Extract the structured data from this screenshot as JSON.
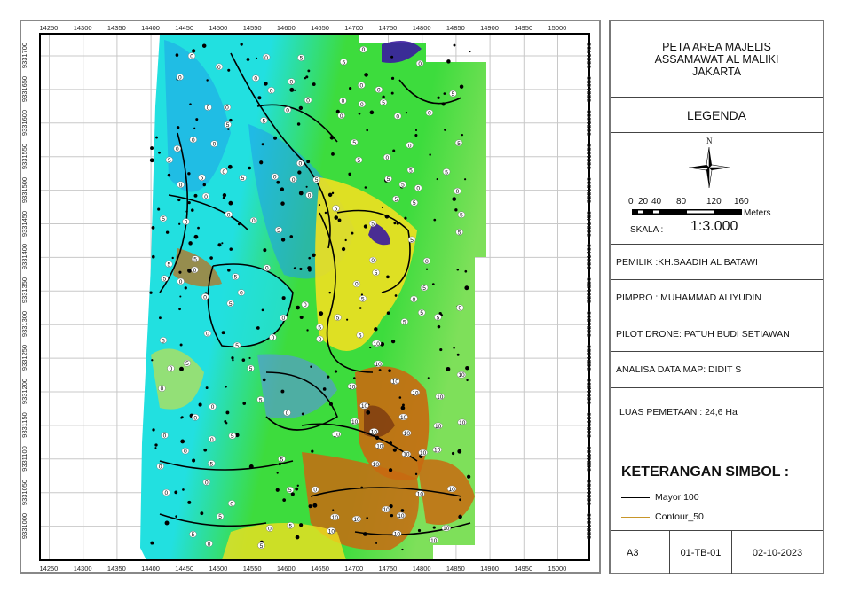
{
  "map": {
    "x_ticks": [
      "14250",
      "14300",
      "14350",
      "14400",
      "14450",
      "14500",
      "14550",
      "14600",
      "14650",
      "14700",
      "14750",
      "14800",
      "14850",
      "14900",
      "14950",
      "15000"
    ],
    "y_ticks": [
      "9331700",
      "9331650",
      "9331600",
      "9331550",
      "9331500",
      "9331450",
      "9331400",
      "9331350",
      "9331300",
      "9331250",
      "9331200",
      "9331150",
      "9331100",
      "9331050",
      "9331000"
    ],
    "contour_label_values": [
      "0",
      "5",
      "10"
    ],
    "colors": {
      "low": "#1fa0e8",
      "mid_low": "#22e0e0",
      "mid": "#3ddc3d",
      "mid_high": "#f0e020",
      "high": "#c86a10",
      "peak": "#7a3a10",
      "depression": "#3a1aa0",
      "contour": "#000000"
    }
  },
  "panel": {
    "title_lines": [
      "PETA  AREA MAJELIS",
      "ASSAMAWAT AL MALIKI",
      "JAKARTA"
    ],
    "legend_heading": "LEGENDA",
    "north_label": "N",
    "scale_bar_labels": [
      "0",
      "20",
      "40",
      "80",
      "120",
      "160"
    ],
    "scale_unit": "Meters",
    "scale_label": "SKALA :",
    "scale_value": "1:3.000",
    "owner": "PEMILIK :KH.SAADIH AL BATAWI",
    "project_lead": "PIMPRO : MUHAMMAD ALIYUDIN",
    "drone_pilot": "PILOT DRONE: PATUH BUDI SETIAWAN",
    "data_analysis": "ANALISA DATA MAP: DIDIT S",
    "area": "LUAS PEMETAAN : 24,6 Ha",
    "symbols_heading": "KETERANGAN SIMBOL :",
    "symbols": [
      {
        "label": "Mayor 100",
        "color": "#000000"
      },
      {
        "label": "Contour_50",
        "color": "#c8962a"
      }
    ],
    "footer": {
      "paper": "A3",
      "sheet": "01-TB-01",
      "date": "02-10-2023"
    }
  }
}
